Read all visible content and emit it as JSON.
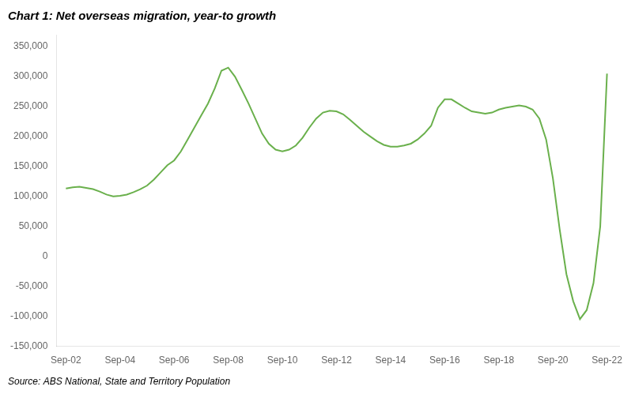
{
  "chart_data": {
    "type": "line",
    "title": "Chart 1: Net overseas migration, year-to growth",
    "annotations": [
      "Source: ABS National, State and Territory Population"
    ],
    "color": "#6ab04c",
    "grid": false,
    "xlim": [
      2002.4,
      2023.2
    ],
    "xticks": [
      {
        "value": 2002.75,
        "label": "Sep-02"
      },
      {
        "value": 2004.75,
        "label": "Sep-04"
      },
      {
        "value": 2006.75,
        "label": "Sep-06"
      },
      {
        "value": 2008.75,
        "label": "Sep-08"
      },
      {
        "value": 2010.75,
        "label": "Sep-10"
      },
      {
        "value": 2012.75,
        "label": "Sep-12"
      },
      {
        "value": 2014.75,
        "label": "Sep-14"
      },
      {
        "value": 2016.75,
        "label": "Sep-16"
      },
      {
        "value": 2018.75,
        "label": "Sep-18"
      },
      {
        "value": 2020.75,
        "label": "Sep-20"
      },
      {
        "value": 2022.75,
        "label": "Sep-22"
      }
    ],
    "ylim": [
      -150000,
      370000
    ],
    "yticks": [
      {
        "value": -150000,
        "label": "-150,000"
      },
      {
        "value": -100000,
        "label": "-100,000"
      },
      {
        "value": -50000,
        "label": "-50,000"
      },
      0,
      {
        "value": 50000,
        "label": "50,000"
      },
      {
        "value": 100000,
        "label": "100,000"
      },
      {
        "value": 150000,
        "label": "150,000"
      },
      {
        "value": 200000,
        "label": "200,000"
      },
      {
        "value": 250000,
        "label": "250,000"
      },
      {
        "value": 300000,
        "label": "300,000"
      },
      {
        "value": 350000,
        "label": "350,000"
      }
    ],
    "x": [
      2002.75,
      2003.0,
      2003.25,
      2003.5,
      2003.75,
      2004.0,
      2004.25,
      2004.5,
      2004.75,
      2005.0,
      2005.25,
      2005.5,
      2005.75,
      2006.0,
      2006.25,
      2006.5,
      2006.75,
      2007.0,
      2007.25,
      2007.5,
      2007.75,
      2008.0,
      2008.25,
      2008.5,
      2008.75,
      2009.0,
      2009.25,
      2009.5,
      2009.75,
      2010.0,
      2010.25,
      2010.5,
      2010.75,
      2011.0,
      2011.25,
      2011.5,
      2011.75,
      2012.0,
      2012.25,
      2012.5,
      2012.75,
      2013.0,
      2013.25,
      2013.5,
      2013.75,
      2014.0,
      2014.25,
      2014.5,
      2014.75,
      2015.0,
      2015.25,
      2015.5,
      2015.75,
      2016.0,
      2016.25,
      2016.5,
      2016.75,
      2017.0,
      2017.25,
      2017.5,
      2017.75,
      2018.0,
      2018.25,
      2018.5,
      2018.75,
      2019.0,
      2019.25,
      2019.5,
      2019.75,
      2020.0,
      2020.25,
      2020.5,
      2020.75,
      2021.0,
      2021.25,
      2021.5,
      2021.75,
      2022.0,
      2022.25,
      2022.5,
      2022.75
    ],
    "values": [
      113000,
      115000,
      116000,
      114000,
      112000,
      108000,
      103000,
      100000,
      101000,
      103000,
      107000,
      112000,
      118000,
      128000,
      140000,
      152000,
      160000,
      175000,
      195000,
      215000,
      235000,
      255000,
      280000,
      310000,
      315000,
      300000,
      278000,
      255000,
      230000,
      205000,
      188000,
      178000,
      175000,
      178000,
      185000,
      198000,
      215000,
      230000,
      240000,
      243000,
      242000,
      237000,
      228000,
      218000,
      208000,
      200000,
      192000,
      186000,
      183000,
      183000,
      185000,
      188000,
      195000,
      205000,
      218000,
      248000,
      262000,
      262000,
      255000,
      248000,
      242000,
      240000,
      238000,
      240000,
      245000,
      248000,
      250000,
      252000,
      250000,
      245000,
      230000,
      195000,
      130000,
      45000,
      -30000,
      -75000,
      -105000,
      -90000,
      -45000,
      50000,
      305000
    ]
  }
}
